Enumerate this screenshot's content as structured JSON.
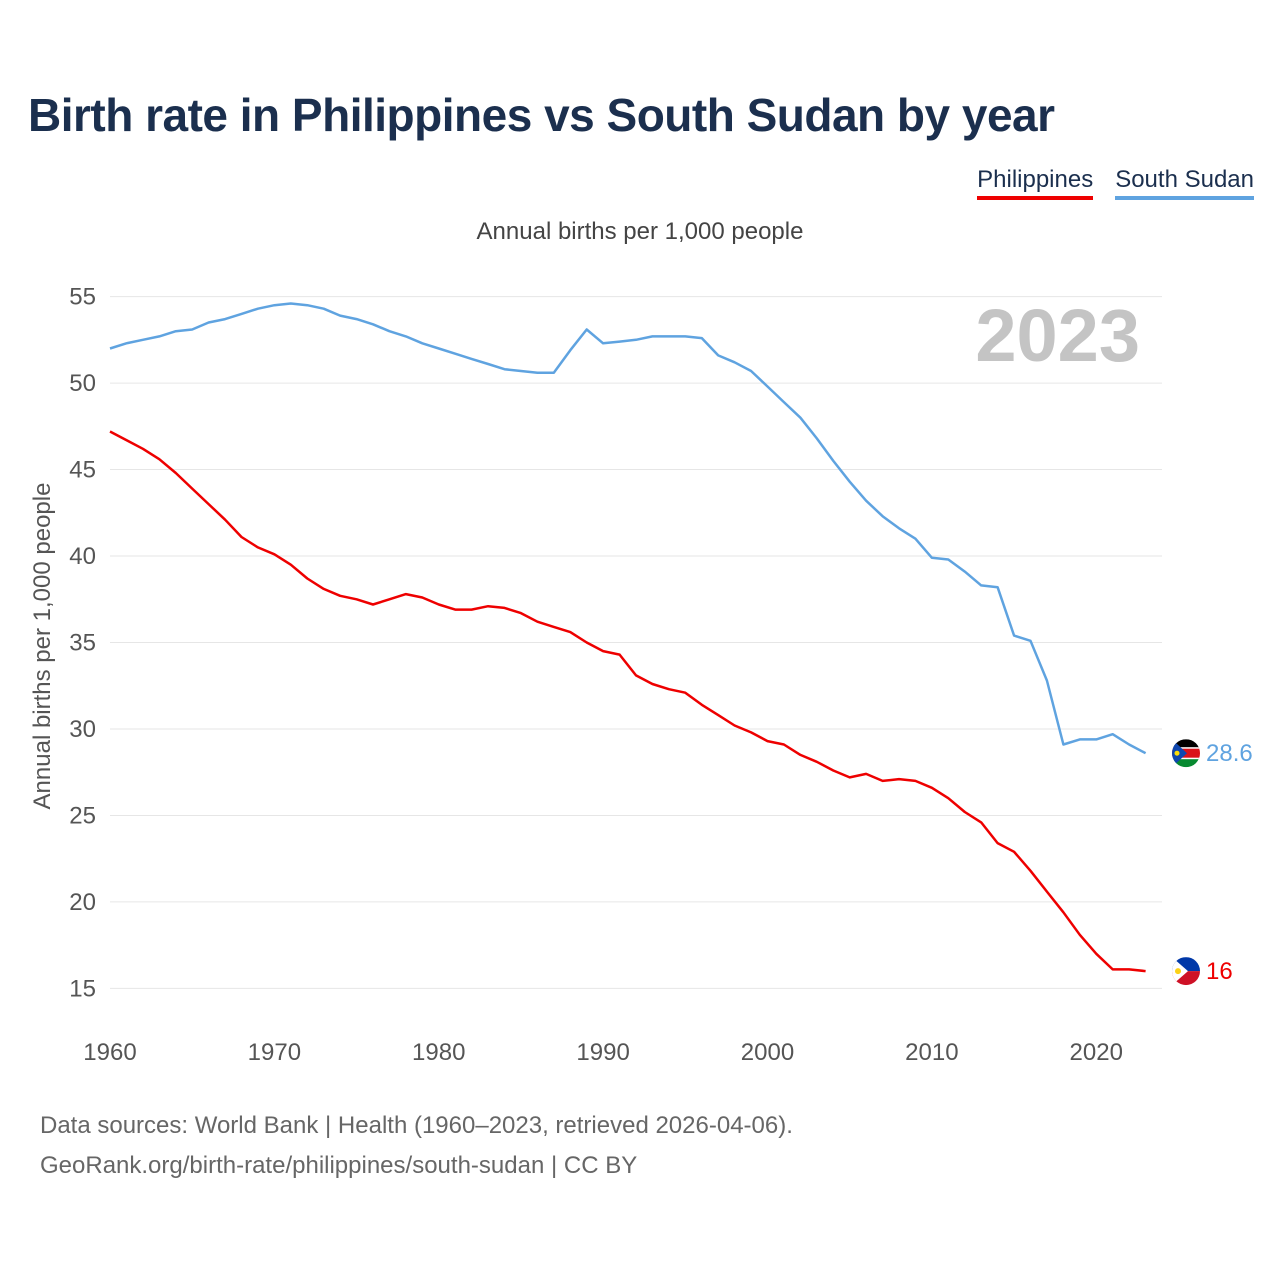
{
  "title": "Birth rate in Philippines vs South Sudan by year",
  "legend": [
    {
      "name": "Philippines",
      "color": "#ee0000"
    },
    {
      "name": "South Sudan",
      "color": "#5fa3e0"
    }
  ],
  "subtitle": "Annual births per 1,000 people",
  "footer": {
    "line1": "Data sources: World Bank | Health (1960–2023, retrieved 2026-04-06).",
    "line2": "GeoRank.org/birth-rate/philippines/south-sudan | CC BY"
  },
  "chart_data": {
    "type": "line",
    "title": "Birth rate in Philippines vs South Sudan by year",
    "ylabel": "Annual births per 1,000 people",
    "xlabel": "",
    "year_label": "2023",
    "xlim": [
      1960,
      2024
    ],
    "ylim": [
      13,
      57
    ],
    "xticks": [
      1960,
      1970,
      1980,
      1990,
      2000,
      2010,
      2020
    ],
    "yticks": [
      15,
      20,
      25,
      30,
      35,
      40,
      45,
      50,
      55
    ],
    "grid": true,
    "x": [
      1960,
      1961,
      1962,
      1963,
      1964,
      1965,
      1966,
      1967,
      1968,
      1969,
      1970,
      1971,
      1972,
      1973,
      1974,
      1975,
      1976,
      1977,
      1978,
      1979,
      1980,
      1981,
      1982,
      1983,
      1984,
      1985,
      1986,
      1987,
      1988,
      1989,
      1990,
      1991,
      1992,
      1993,
      1994,
      1995,
      1996,
      1997,
      1998,
      1999,
      2000,
      2001,
      2002,
      2003,
      2004,
      2005,
      2006,
      2007,
      2008,
      2009,
      2010,
      2011,
      2012,
      2013,
      2014,
      2015,
      2016,
      2017,
      2018,
      2019,
      2020,
      2021,
      2022,
      2023
    ],
    "series": [
      {
        "name": "Philippines",
        "color": "#ee0000",
        "end_label": "16",
        "values": [
          47.2,
          46.7,
          46.2,
          45.6,
          44.8,
          43.9,
          43.0,
          42.1,
          41.1,
          40.5,
          40.1,
          39.5,
          38.7,
          38.1,
          37.7,
          37.5,
          37.2,
          37.5,
          37.8,
          37.6,
          37.2,
          36.9,
          36.9,
          37.1,
          37.0,
          36.7,
          36.2,
          35.9,
          35.6,
          35.0,
          34.5,
          34.3,
          33.1,
          32.6,
          32.3,
          32.1,
          31.4,
          30.8,
          30.2,
          29.8,
          29.3,
          29.1,
          28.5,
          28.1,
          27.6,
          27.2,
          27.4,
          27.0,
          27.1,
          27.0,
          26.6,
          26.0,
          25.2,
          24.6,
          23.4,
          22.9,
          21.8,
          20.6,
          19.4,
          18.1,
          17.0,
          16.1,
          16.1,
          16.0
        ]
      },
      {
        "name": "South Sudan",
        "color": "#5fa3e0",
        "end_label": "28.6",
        "values": [
          52.0,
          52.3,
          52.5,
          52.7,
          53.0,
          53.1,
          53.5,
          53.7,
          54.0,
          54.3,
          54.5,
          54.6,
          54.5,
          54.3,
          53.9,
          53.7,
          53.4,
          53.0,
          52.7,
          52.3,
          52.0,
          51.7,
          51.4,
          51.1,
          50.8,
          50.7,
          50.6,
          50.6,
          51.9,
          53.1,
          52.3,
          52.4,
          52.5,
          52.7,
          52.7,
          52.7,
          52.6,
          51.6,
          51.2,
          50.7,
          49.8,
          48.9,
          48.0,
          46.8,
          45.5,
          44.3,
          43.2,
          42.3,
          41.6,
          41.0,
          39.9,
          39.8,
          39.1,
          38.3,
          38.2,
          35.4,
          35.1,
          32.8,
          29.1,
          29.4,
          29.4,
          29.7,
          29.1,
          28.6
        ]
      }
    ]
  }
}
